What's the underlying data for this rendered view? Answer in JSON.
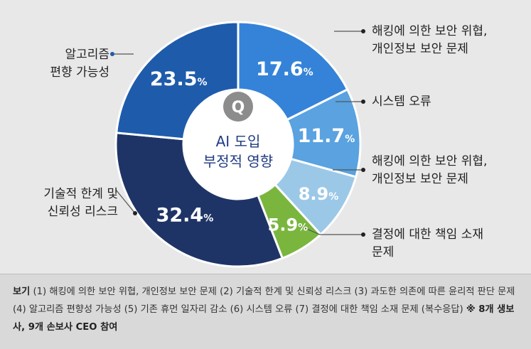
{
  "chart_data": {
    "type": "pie",
    "center_title": [
      "AI 도입",
      "부정적 영향"
    ],
    "center_icon_letter": "Q",
    "slices": [
      {
        "category": "해킹에 의한 보안 위협,\n개인정보 보안 문제",
        "value": 17.6,
        "label": "17.6%",
        "color": "#3483d8"
      },
      {
        "category": "시스템 오류",
        "value": 11.7,
        "label": "11.7%",
        "color": "#5aa2e0"
      },
      {
        "category": "해킹에 의한 보안 위협,\n개인정보 보안 문제",
        "value": 8.9,
        "label": "8.9%",
        "color": "#9cc8e8"
      },
      {
        "category": "결정에 대한 책임 소재\n문제",
        "value": 5.9,
        "label": "5.9%",
        "color": "#7ab63e"
      },
      {
        "category": "기술적 한계 및\n신뢰성 리스크",
        "value": 32.4,
        "label": "32.4%",
        "color": "#1f3466"
      },
      {
        "category": "알고리즘\n편향 가능성",
        "value": 23.5,
        "label": "23.5%",
        "color": "#1e5bab"
      }
    ]
  },
  "footer": {
    "label": "보기",
    "text": "(1) 해킹에 의한 보안 위협, 개인정보 보안 문제 (2) 기술적 한계 및 신뢰성 리스크 (3) 과도한 의존에 따른 윤리적 판단 문제 (4) 알고리즘 편향성 가능성 (5) 기존 휴먼 일자리 감소 (6) 시스템 오류 (7) 결정에 대한 책임 소재 문제 (복수응답)",
    "note": "※ 8개 생보사, 9개 손보사 CEO 참여"
  }
}
